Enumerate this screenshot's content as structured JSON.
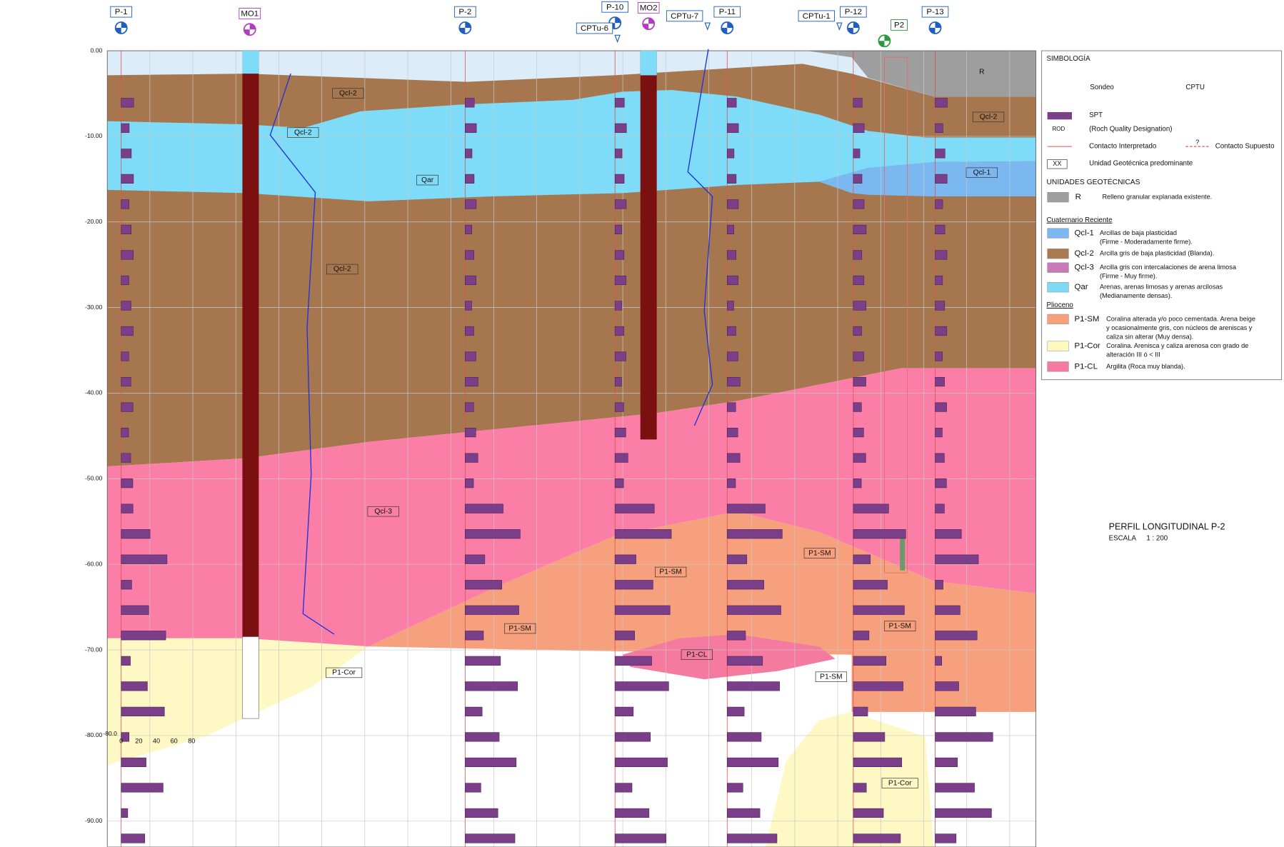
{
  "boreholes": [
    "P-1",
    "MO1",
    "P-2",
    "P-10",
    "CPTu-6",
    "MO2",
    "CPTu-7",
    "P-11",
    "CPTu-1",
    "P-12",
    "P2",
    "P-13"
  ],
  "depth_labels": [
    "0.00",
    "-10.00",
    "-20.00",
    "-30.00",
    "-40.00",
    "-50.00",
    "-60.00",
    "-70.00",
    "-80.00",
    "-90.00"
  ],
  "unit_labels": [
    "Qcl-2",
    "Qcl-2",
    "Qcl-2",
    "Qcl-2",
    "Qar",
    "Qcl-1",
    "R",
    "Qcl-3",
    "P1-SM",
    "P1-SM",
    "P1-SM",
    "P1-SM",
    "P1-SM",
    "P1-CL",
    "P1-Cor",
    "P1-Cor"
  ],
  "spt_scale": {
    "end_label": "-80.0",
    "ticks": [
      "0",
      "20",
      "40",
      "60",
      "80"
    ]
  },
  "legend": {
    "title": "SIMBOLOGÍA",
    "sondeo": "Sondeo",
    "cptu": "CPTU",
    "spt": "SPT",
    "rqd_abbr": "ROD",
    "rqd": "(Roch Quality Designation)",
    "contact_interpreted": "Contacto Interpretado",
    "contact_supposed": "Contacto Supuesto",
    "contact_symbol": "?",
    "xx": "XX",
    "xx_desc": "Unidad Geotécnica predominante",
    "units_title": "UNIDADES GEOTÉCNICAS",
    "cuaternario": "Cuaternario Reciente",
    "plioceno": "Plioceno",
    "items": [
      {
        "code": "R",
        "lines": [
          "Relleno granular explanada existente."
        ]
      },
      {
        "code": "Qcl-1",
        "lines": [
          "Arcillas de baja plasticidad",
          "(Firme - Moderadamente firme)."
        ]
      },
      {
        "code": "Qcl-2",
        "lines": [
          "Arcilla gris de baja plasticidad (Blanda)."
        ]
      },
      {
        "code": "Qcl-3",
        "lines": [
          "Arcilla gris con intercalaciones de arena limosa",
          "(Firme - Muy firme)."
        ]
      },
      {
        "code": "Qar",
        "lines": [
          "Arenas, arenas limosas y arenas arcilosas",
          "(Medianamente densas)."
        ]
      },
      {
        "code": "P1-SM",
        "lines": [
          "Coralina alterada y/o poco cementada. Arena beige",
          "y ocasionalmente gris, con núcleos de areniscas y",
          "caliza sin alterar (Muy densa)."
        ]
      },
      {
        "code": "P1-Cor",
        "lines": [
          "Coralina. Arenisca y caliza arenosa con grado de",
          "alteración III ó < III"
        ]
      },
      {
        "code": "P1-CL",
        "lines": [
          "Argilita (Roca muy blanda)."
        ]
      }
    ]
  },
  "title": "PERFIL LONGITUDINAL P-2",
  "scale_label": "ESCALA",
  "scale_value": "1 : 200"
}
